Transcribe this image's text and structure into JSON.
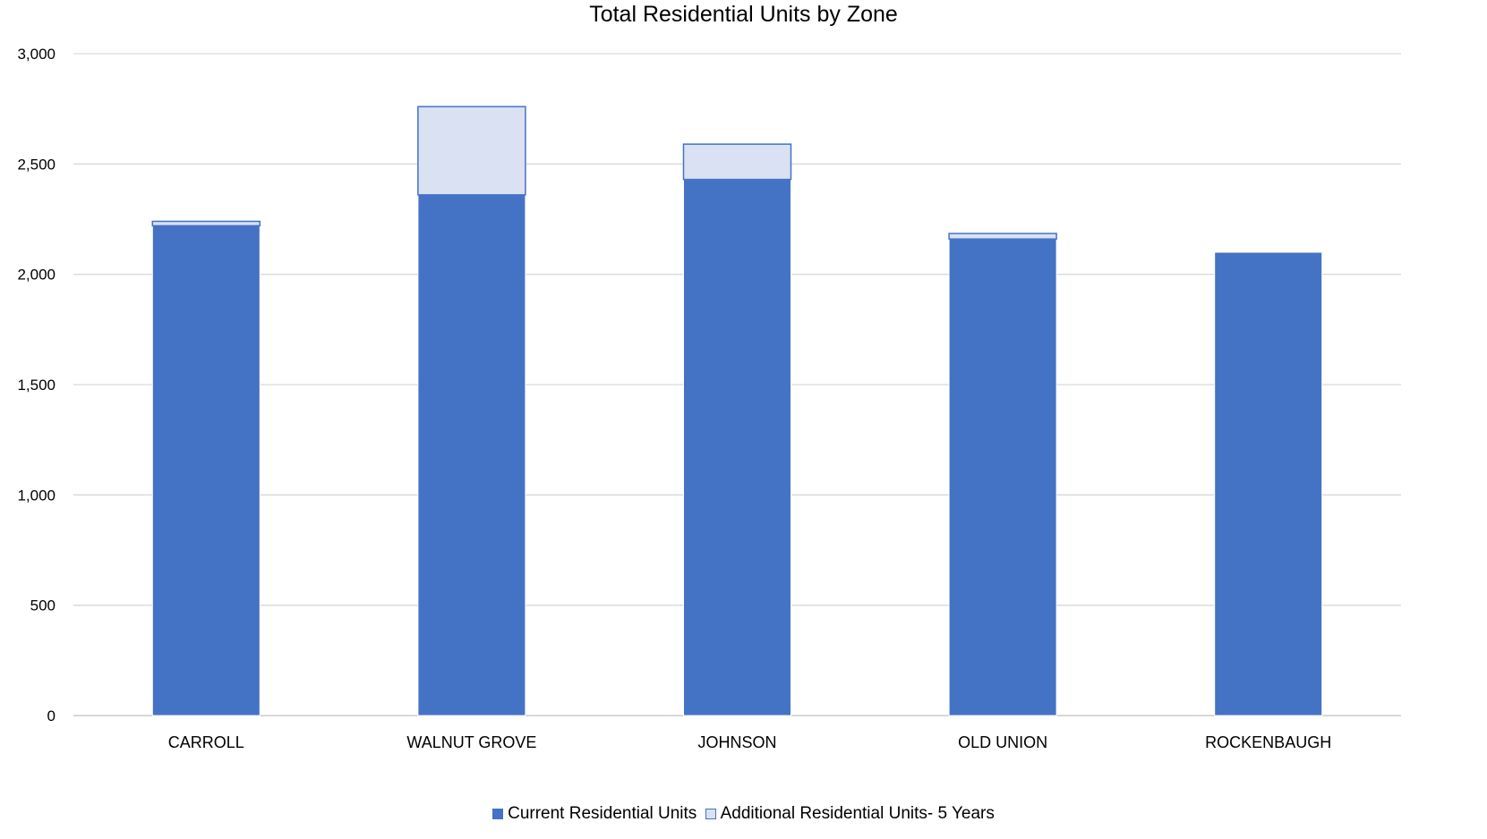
{
  "chart_data": {
    "type": "bar",
    "stacked": true,
    "title": "Total Residential Units by Zone",
    "xlabel": "",
    "ylabel": "",
    "categories": [
      "CARROLL",
      "WALNUT GROVE",
      "JOHNSON",
      "OLD UNION",
      "ROCKENBAUGH"
    ],
    "series": [
      {
        "name": "Current Residential Units",
        "color": "#4472C4",
        "values": [
          2220,
          2360,
          2430,
          2160,
          2100
        ]
      },
      {
        "name": "Additional Residential Units- 5 Years",
        "color": "#D9E1F2",
        "border": "#4472C4",
        "values": [
          20,
          400,
          160,
          25,
          0
        ]
      }
    ],
    "ylim": [
      0,
      3000
    ],
    "yticks": [
      "0",
      "500",
      "1,000",
      "1,500",
      "2,000",
      "2,500",
      "3,000"
    ],
    "ytick_values": [
      0,
      500,
      1000,
      1500,
      2000,
      2500,
      3000
    ],
    "grid": true,
    "legend_position": "bottom"
  }
}
